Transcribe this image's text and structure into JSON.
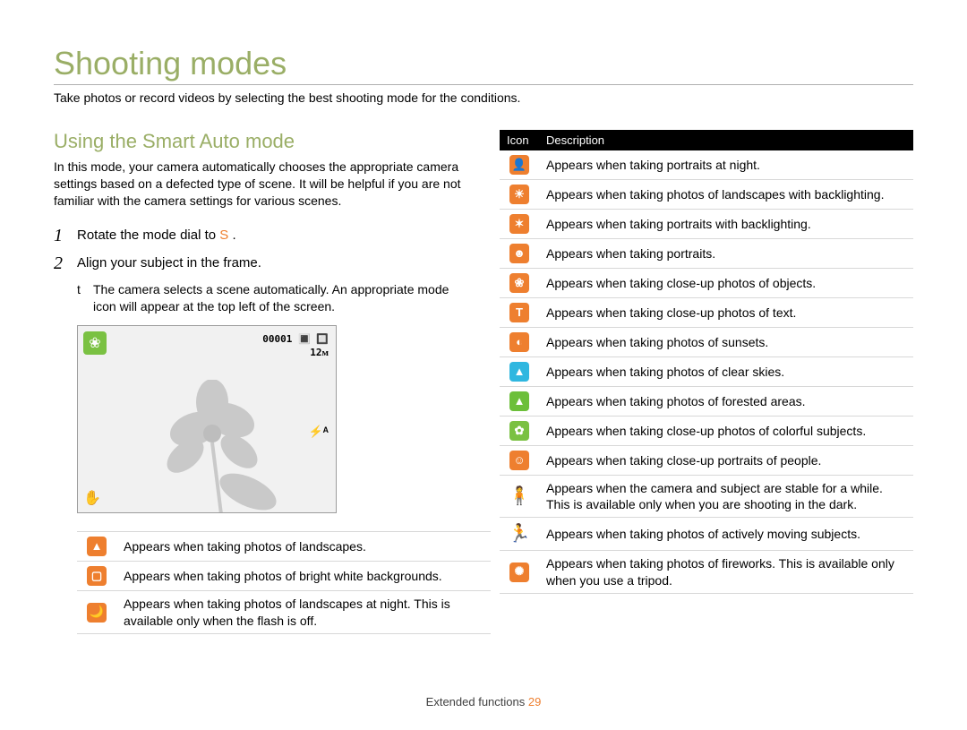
{
  "title": "Shooting modes",
  "subtitle": "Take photos or record videos by selecting the best shooting mode for the conditions.",
  "section_heading": "Using the Smart Auto mode",
  "intro": "In this mode, your camera automatically chooses the appropriate camera settings based on a defected type of scene. It will be helpful if you are not familiar with the camera settings for various scenes.",
  "steps": [
    {
      "num": "1",
      "text_pre": "Rotate the mode dial to",
      "text_post": "."
    },
    {
      "num": "2",
      "text_pre": "Align your subject in the frame.",
      "text_post": ""
    }
  ],
  "sub_bullet_marker": "t",
  "sub_bullet": "The camera selects a scene automatically. An appropriate mode icon will appear at the top left of the screen.",
  "screen": {
    "counter": "00001",
    "battery_glyph": "🔳 🔲",
    "res": "12ᴍ",
    "flash": "⚡ᴬ",
    "stabilizer": "✋"
  },
  "left_table_header": {
    "icon": "",
    "desc": ""
  },
  "left_table": [
    {
      "icon_bg": "#ee7f2f",
      "icon_glyph": "▲",
      "desc": "Appears when taking photos of landscapes."
    },
    {
      "icon_bg": "#ee7f2f",
      "icon_glyph": "▢",
      "desc": "Appears when taking photos of bright white backgrounds."
    },
    {
      "icon_bg": "#ee7f2f",
      "icon_glyph": "🌙",
      "desc": "Appears when taking photos of landscapes at night. This is available only when the ﬂash is off."
    }
  ],
  "right_table_header": {
    "icon": "Icon",
    "desc": "Description"
  },
  "right_table": [
    {
      "icon_bg": "#ee7f2f",
      "icon_glyph": "👤",
      "plain": false,
      "desc": "Appears when taking portraits at night."
    },
    {
      "icon_bg": "#ee7f2f",
      "icon_glyph": "☀",
      "plain": false,
      "desc": "Appears when taking photos of landscapes with backlighting."
    },
    {
      "icon_bg": "#ee7f2f",
      "icon_glyph": "✶",
      "plain": false,
      "desc": "Appears when taking portraits with backlighting."
    },
    {
      "icon_bg": "#ee7f2f",
      "icon_glyph": "☻",
      "plain": false,
      "desc": "Appears when taking portraits."
    },
    {
      "icon_bg": "#ee7f2f",
      "icon_glyph": "❀",
      "plain": false,
      "desc": "Appears when taking close-up photos of objects."
    },
    {
      "icon_bg": "#ee7f2f",
      "icon_glyph": "T",
      "plain": false,
      "desc": "Appears when taking close-up photos of text."
    },
    {
      "icon_bg": "#ee7f2f",
      "icon_glyph": "◐",
      "plain": false,
      "desc": "Appears when taking photos of sunsets."
    },
    {
      "icon_bg": "#2fb7e0",
      "icon_glyph": "▲",
      "plain": false,
      "desc": "Appears when taking photos of clear skies."
    },
    {
      "icon_bg": "#6cbf3a",
      "icon_glyph": "▲",
      "plain": false,
      "desc": "Appears when taking photos of forested areas."
    },
    {
      "icon_bg": "#7ac142",
      "icon_glyph": "✿",
      "plain": false,
      "desc": "Appears when taking close-up photos of colorful subjects."
    },
    {
      "icon_bg": "#ee7f2f",
      "icon_glyph": "☺",
      "plain": false,
      "desc": "Appears when taking close-up portraits of people."
    },
    {
      "icon_bg": "",
      "icon_glyph": "🧍",
      "plain": true,
      "desc": "Appears when the camera and subject are stable for a while. This is available only when you are shooting in the dark."
    },
    {
      "icon_bg": "",
      "icon_glyph": "🏃",
      "plain": true,
      "desc": "Appears when taking photos of actively moving subjects."
    },
    {
      "icon_bg": "#ee7f2f",
      "icon_glyph": "✺",
      "plain": false,
      "desc": "Appears when taking photos of ﬁreworks. This is available only when you use a tripod."
    }
  ],
  "footer": {
    "label": "Extended functions",
    "page": "29"
  },
  "colors": {
    "heading_green": "#9aae66",
    "orange": "#ee7f2f",
    "rule": "#b0b0b0",
    "row_border": "#d8d8d8",
    "black": "#000000",
    "white": "#ffffff",
    "screen_bg": "#f1f1f1"
  }
}
